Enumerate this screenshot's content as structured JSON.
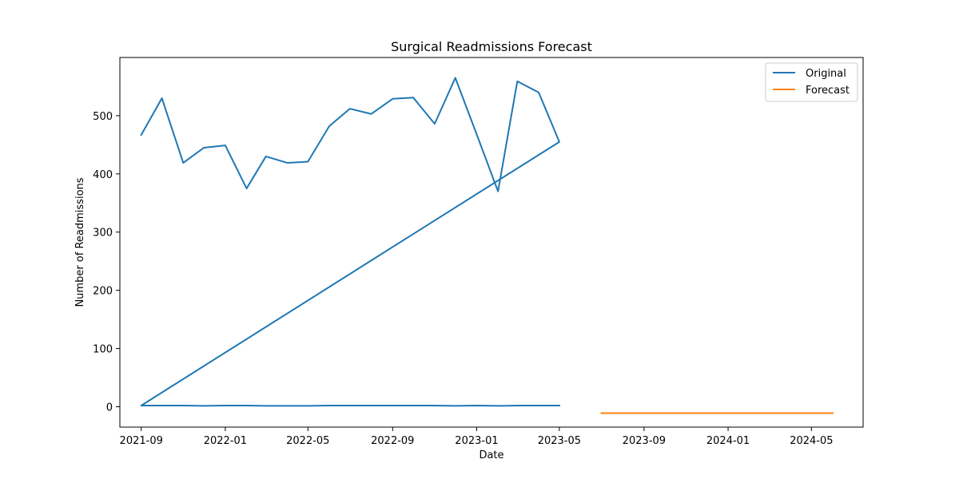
{
  "chart_data": {
    "type": "line",
    "title": "Surgical Readmissions Forecast",
    "xlabel": "Date",
    "ylabel": "Number of Readmissions",
    "xlim": [
      "2021-08-01",
      "2024-07-15"
    ],
    "ylim": [
      -35,
      600
    ],
    "grid": false,
    "legend_position": "top-right",
    "x_ticks": [
      "2021-09",
      "2022-01",
      "2022-05",
      "2022-09",
      "2023-01",
      "2023-05",
      "2023-09",
      "2024-01",
      "2024-05"
    ],
    "y_ticks": [
      0,
      100,
      200,
      300,
      400,
      500
    ],
    "series": [
      {
        "name": "Original",
        "color": "#1f77b4",
        "x": [
          "2021-09-01",
          "2021-10-01",
          "2021-11-01",
          "2021-12-01",
          "2022-01-01",
          "2022-02-01",
          "2022-03-01",
          "2022-04-01",
          "2022-05-01",
          "2022-06-01",
          "2022-07-01",
          "2022-08-01",
          "2022-09-01",
          "2022-10-01",
          "2022-11-01",
          "2022-12-01",
          "2023-01-01",
          "2023-02-01",
          "2023-03-01",
          "2023-04-01",
          "2023-05-01",
          "2021-09-01",
          "2021-09-01",
          "2021-10-01",
          "2021-11-01",
          "2021-12-01",
          "2022-01-01",
          "2022-02-01",
          "2022-03-01",
          "2022-04-01",
          "2022-05-01",
          "2022-06-01",
          "2022-07-01",
          "2022-08-01",
          "2022-09-01",
          "2022-10-01",
          "2022-11-01",
          "2022-12-01",
          "2023-01-01",
          "2023-02-01",
          "2023-03-01",
          "2023-04-01",
          "2023-05-01"
        ],
        "y": [
          467,
          530,
          419,
          445,
          449,
          375,
          430,
          419,
          421,
          482,
          512,
          503,
          529,
          531,
          486,
          565,
          468,
          370,
          559,
          540,
          455,
          2,
          2,
          2,
          2,
          1.5,
          2,
          2,
          1.5,
          1.5,
          1.5,
          2,
          2,
          2,
          2,
          2,
          2,
          1.5,
          2,
          1.5,
          2,
          2,
          2
        ]
      },
      {
        "name": "Forecast",
        "color": "#ff7f0e",
        "x": [
          "2023-07-01",
          "2024-06-01"
        ],
        "y": [
          -11,
          -11
        ]
      }
    ]
  }
}
